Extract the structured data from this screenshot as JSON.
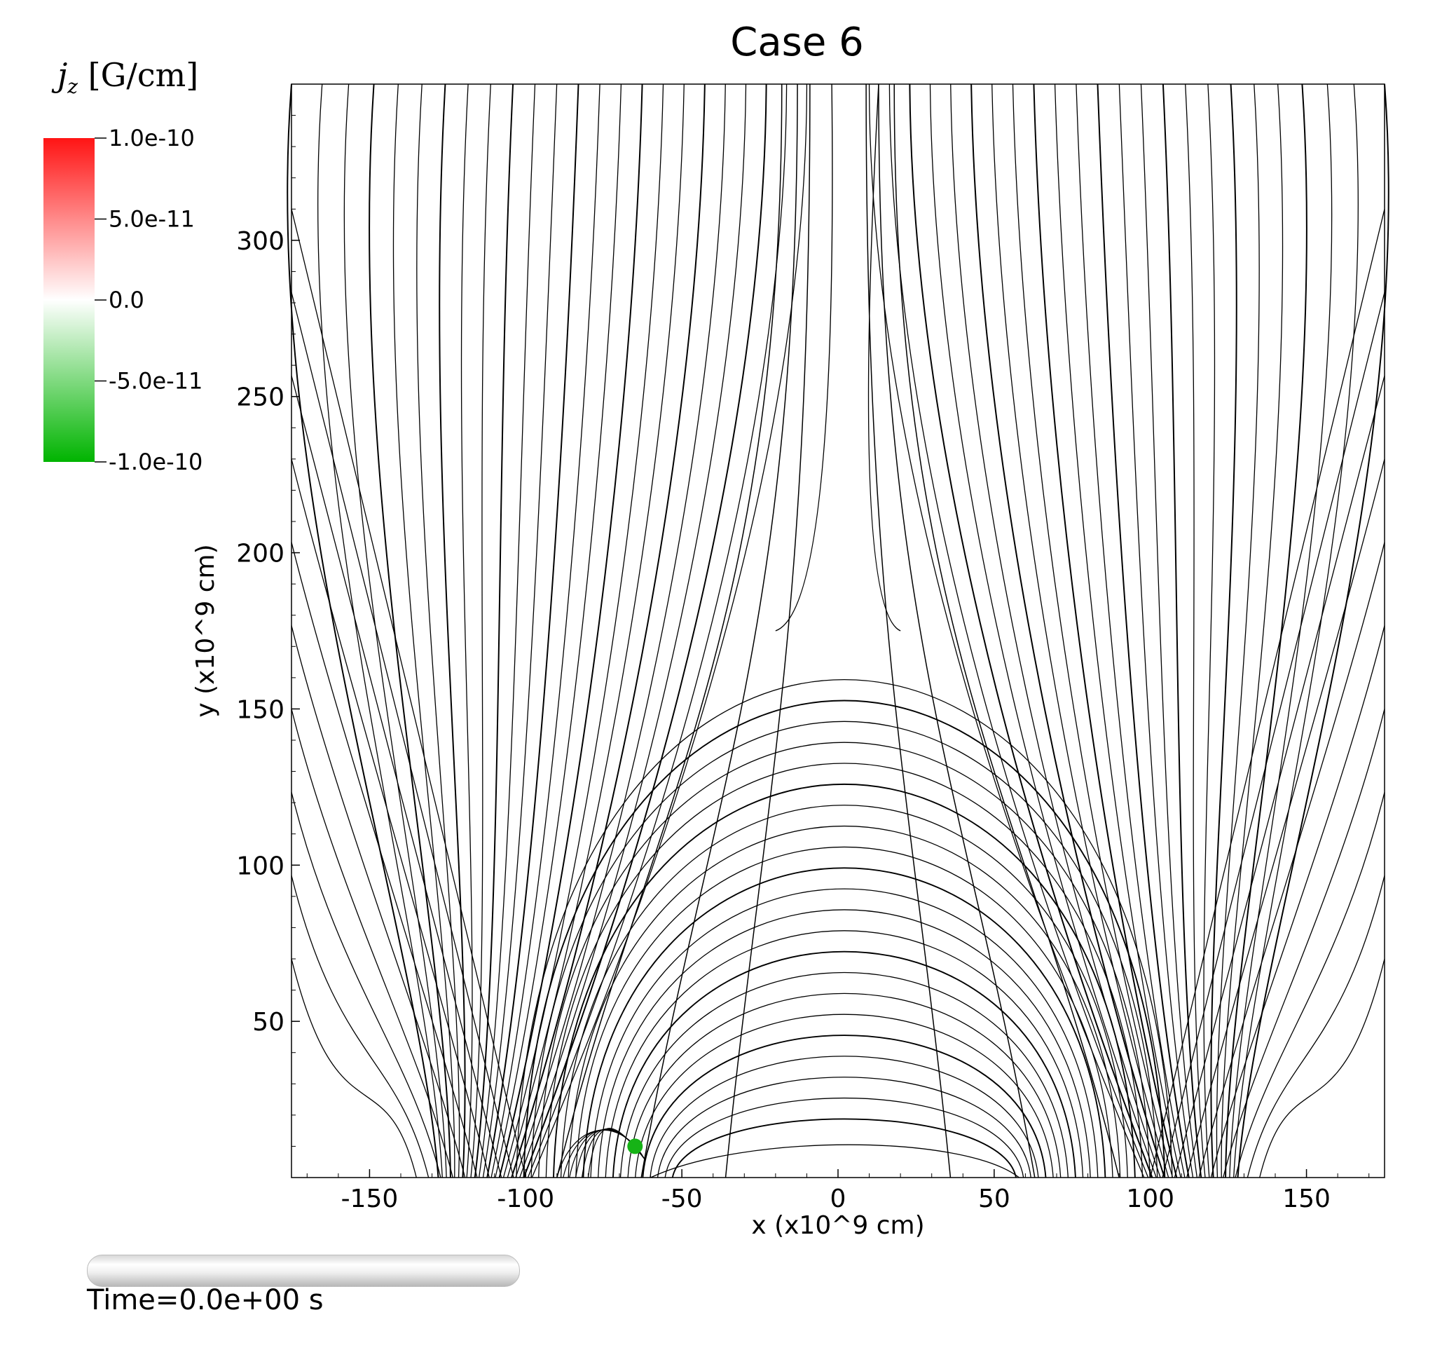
{
  "chart_data": {
    "type": "streamline",
    "title": "Case 6",
    "xlabel": "x (x10^9 cm)",
    "ylabel": "y (x10^9 cm)",
    "xlim": [
      -175,
      175
    ],
    "ylim": [
      0,
      350
    ],
    "xticks": [
      "-150",
      "-100",
      "-50",
      "0",
      "50",
      "100",
      "150"
    ],
    "xtick_values": [
      -150,
      -100,
      -50,
      0,
      50,
      100,
      150
    ],
    "yticks": [
      "50",
      "100",
      "150",
      "200",
      "250",
      "300"
    ],
    "ytick_values": [
      50,
      100,
      150,
      200,
      250,
      300
    ],
    "marker": {
      "x": -65,
      "y": 10,
      "color": "#16b316"
    },
    "colorbar": {
      "variable": "j_z",
      "unit": "[G/cm]",
      "ticks": [
        "1.0e-10",
        "5.0e-11",
        "0.0",
        "-5.0e-11",
        "-1.0e-10"
      ],
      "range": [
        -1e-10,
        1e-10
      ],
      "colors": [
        "#00b400",
        "#ffffff",
        "#ff1414"
      ]
    }
  },
  "time_label": "Time=0.0e+00 s"
}
